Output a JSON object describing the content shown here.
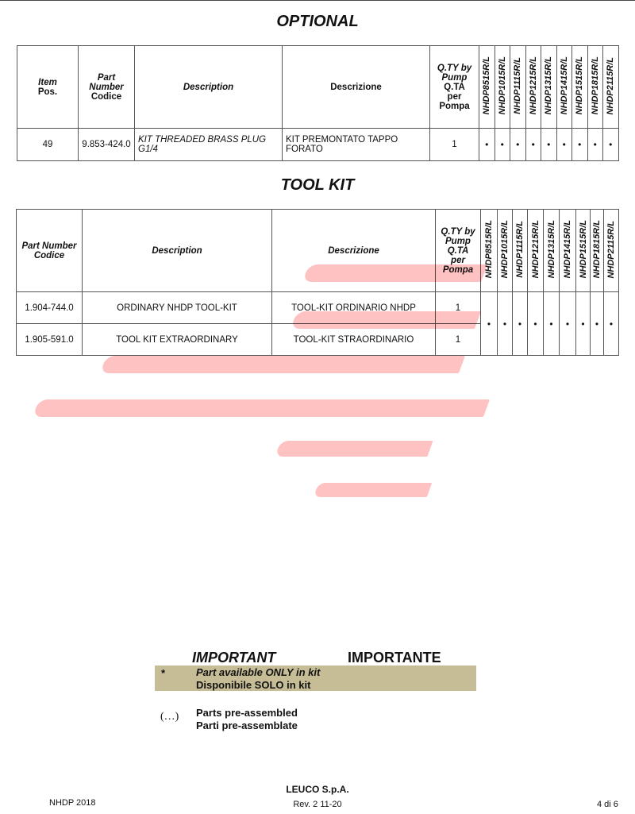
{
  "optional": {
    "title": "OPTIONAL",
    "headers": {
      "item": [
        "Item",
        "Pos."
      ],
      "part": [
        "Part",
        "Number",
        "Codice"
      ],
      "description": "Description",
      "descrizione": "Descrizione",
      "qty": [
        "Q.TY by",
        "Pump",
        "Q.TA",
        "per",
        "Pompa"
      ]
    },
    "models": [
      "NHDP8515R/L",
      "NHDP1015R/L",
      "NHDP1115R/L",
      "NHDP1215R/L",
      "NHDP1315R/L",
      "NHDP1415R/L",
      "NHDP1515R/L",
      "NHDP1815R/L",
      "NHDP2115R/L"
    ],
    "rows": [
      {
        "item": "49",
        "part": "9.853-424.0",
        "description": "KIT THREADED BRASS PLUG G1/4",
        "descrizione": "KIT PREMONTATO TAPPO FORATO",
        "qty": "1",
        "marks": [
          "•",
          "•",
          "•",
          "•",
          "•",
          "•",
          "•",
          "•",
          "•"
        ]
      }
    ]
  },
  "toolkit": {
    "title": "TOOL KIT",
    "headers": {
      "part": [
        "Part Number",
        "Codice"
      ],
      "description": "Description",
      "descrizione": "Descrizione",
      "qty": [
        "Q.TY by",
        "Pump",
        "Q.TA",
        "per",
        "Pompa"
      ]
    },
    "models": [
      "NHDP8515R/L",
      "NHDP1015R/L",
      "NHDP1115R/L",
      "NHDP1215R/L",
      "NHDP1315R/L",
      "NHDP1415R/L",
      "NHDP1515R/L",
      "NHDP1815R/L",
      "NHDP2115R/L"
    ],
    "rows": [
      {
        "part": "1.904-744.0",
        "description": "ORDINARY NHDP TOOL-KIT",
        "descrizione": "TOOL-KIT ORDINARIO NHDP",
        "qty": "1"
      },
      {
        "part": "1.905-591.0",
        "description": "TOOL KIT EXTRAORDINARY",
        "descrizione": "TOOL-KIT STRAORDINARIO",
        "qty": "1"
      }
    ],
    "marks": [
      "•",
      "•",
      "•",
      "•",
      "•",
      "•",
      "•",
      "•",
      "•"
    ]
  },
  "important": {
    "title_en": "IMPORTANT",
    "title_it": "IMPORTANTE",
    "kit_symbol": "*",
    "kit_en": "Part available ONLY in kit",
    "kit_it": "Disponibile SOLO in kit",
    "kit_box_color": "#c6bd96",
    "pre_symbol": "(…)",
    "pre_en": "Parts pre-assembled",
    "pre_it": "Parti pre-assemblate"
  },
  "footer": {
    "left": "NHDP 2018",
    "company": "LEUCO S.p.A.",
    "revision": "Rev. 2  11-20",
    "page": "4 di 6"
  },
  "watermark_color": "#ff4646"
}
